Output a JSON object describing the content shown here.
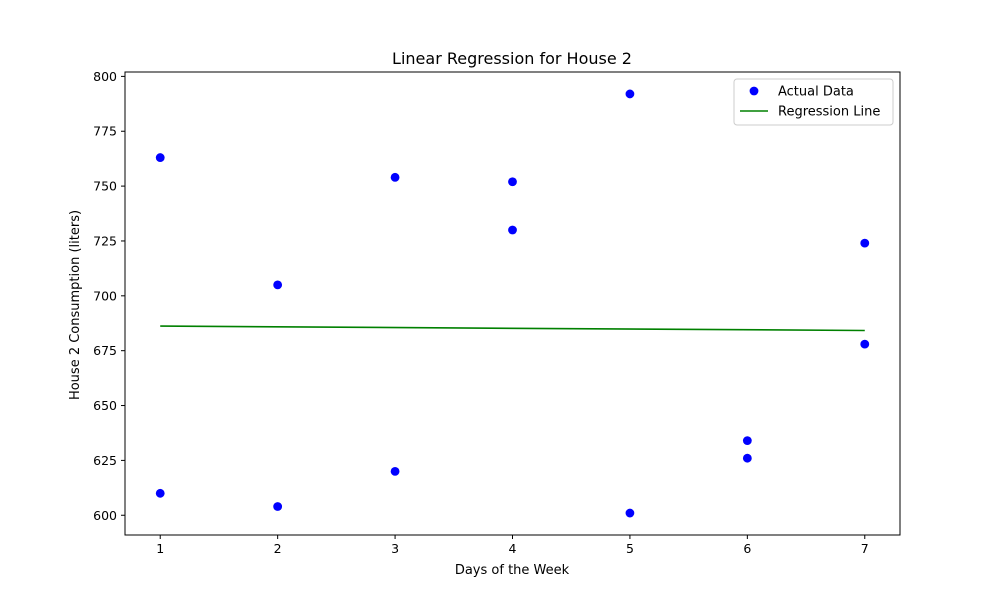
{
  "chart_data": {
    "type": "scatter",
    "title": "Linear Regression for House 2",
    "xlabel": "Days of the Week",
    "ylabel": "House 2 Consumption (liters)",
    "xlim": [
      0.7,
      7.3
    ],
    "ylim": [
      591,
      802
    ],
    "xticks": [
      1,
      2,
      3,
      4,
      5,
      6,
      7
    ],
    "yticks": [
      600,
      625,
      650,
      675,
      700,
      725,
      750,
      775,
      800
    ],
    "grid": false,
    "legend_position": "top-right",
    "series": [
      {
        "name": "Actual Data",
        "kind": "scatter",
        "color": "#0000ff",
        "points": [
          {
            "x": 1,
            "y": 763
          },
          {
            "x": 1,
            "y": 610
          },
          {
            "x": 2,
            "y": 705
          },
          {
            "x": 2,
            "y": 604
          },
          {
            "x": 3,
            "y": 754
          },
          {
            "x": 3,
            "y": 620
          },
          {
            "x": 4,
            "y": 752
          },
          {
            "x": 4,
            "y": 730
          },
          {
            "x": 5,
            "y": 792
          },
          {
            "x": 5,
            "y": 601
          },
          {
            "x": 6,
            "y": 634
          },
          {
            "x": 6,
            "y": 626
          },
          {
            "x": 7,
            "y": 724
          },
          {
            "x": 7,
            "y": 678
          }
        ]
      },
      {
        "name": "Regression Line",
        "kind": "line",
        "color": "#008000",
        "points": [
          {
            "x": 1,
            "y": 686.2
          },
          {
            "x": 7,
            "y": 684.2
          }
        ]
      }
    ]
  }
}
